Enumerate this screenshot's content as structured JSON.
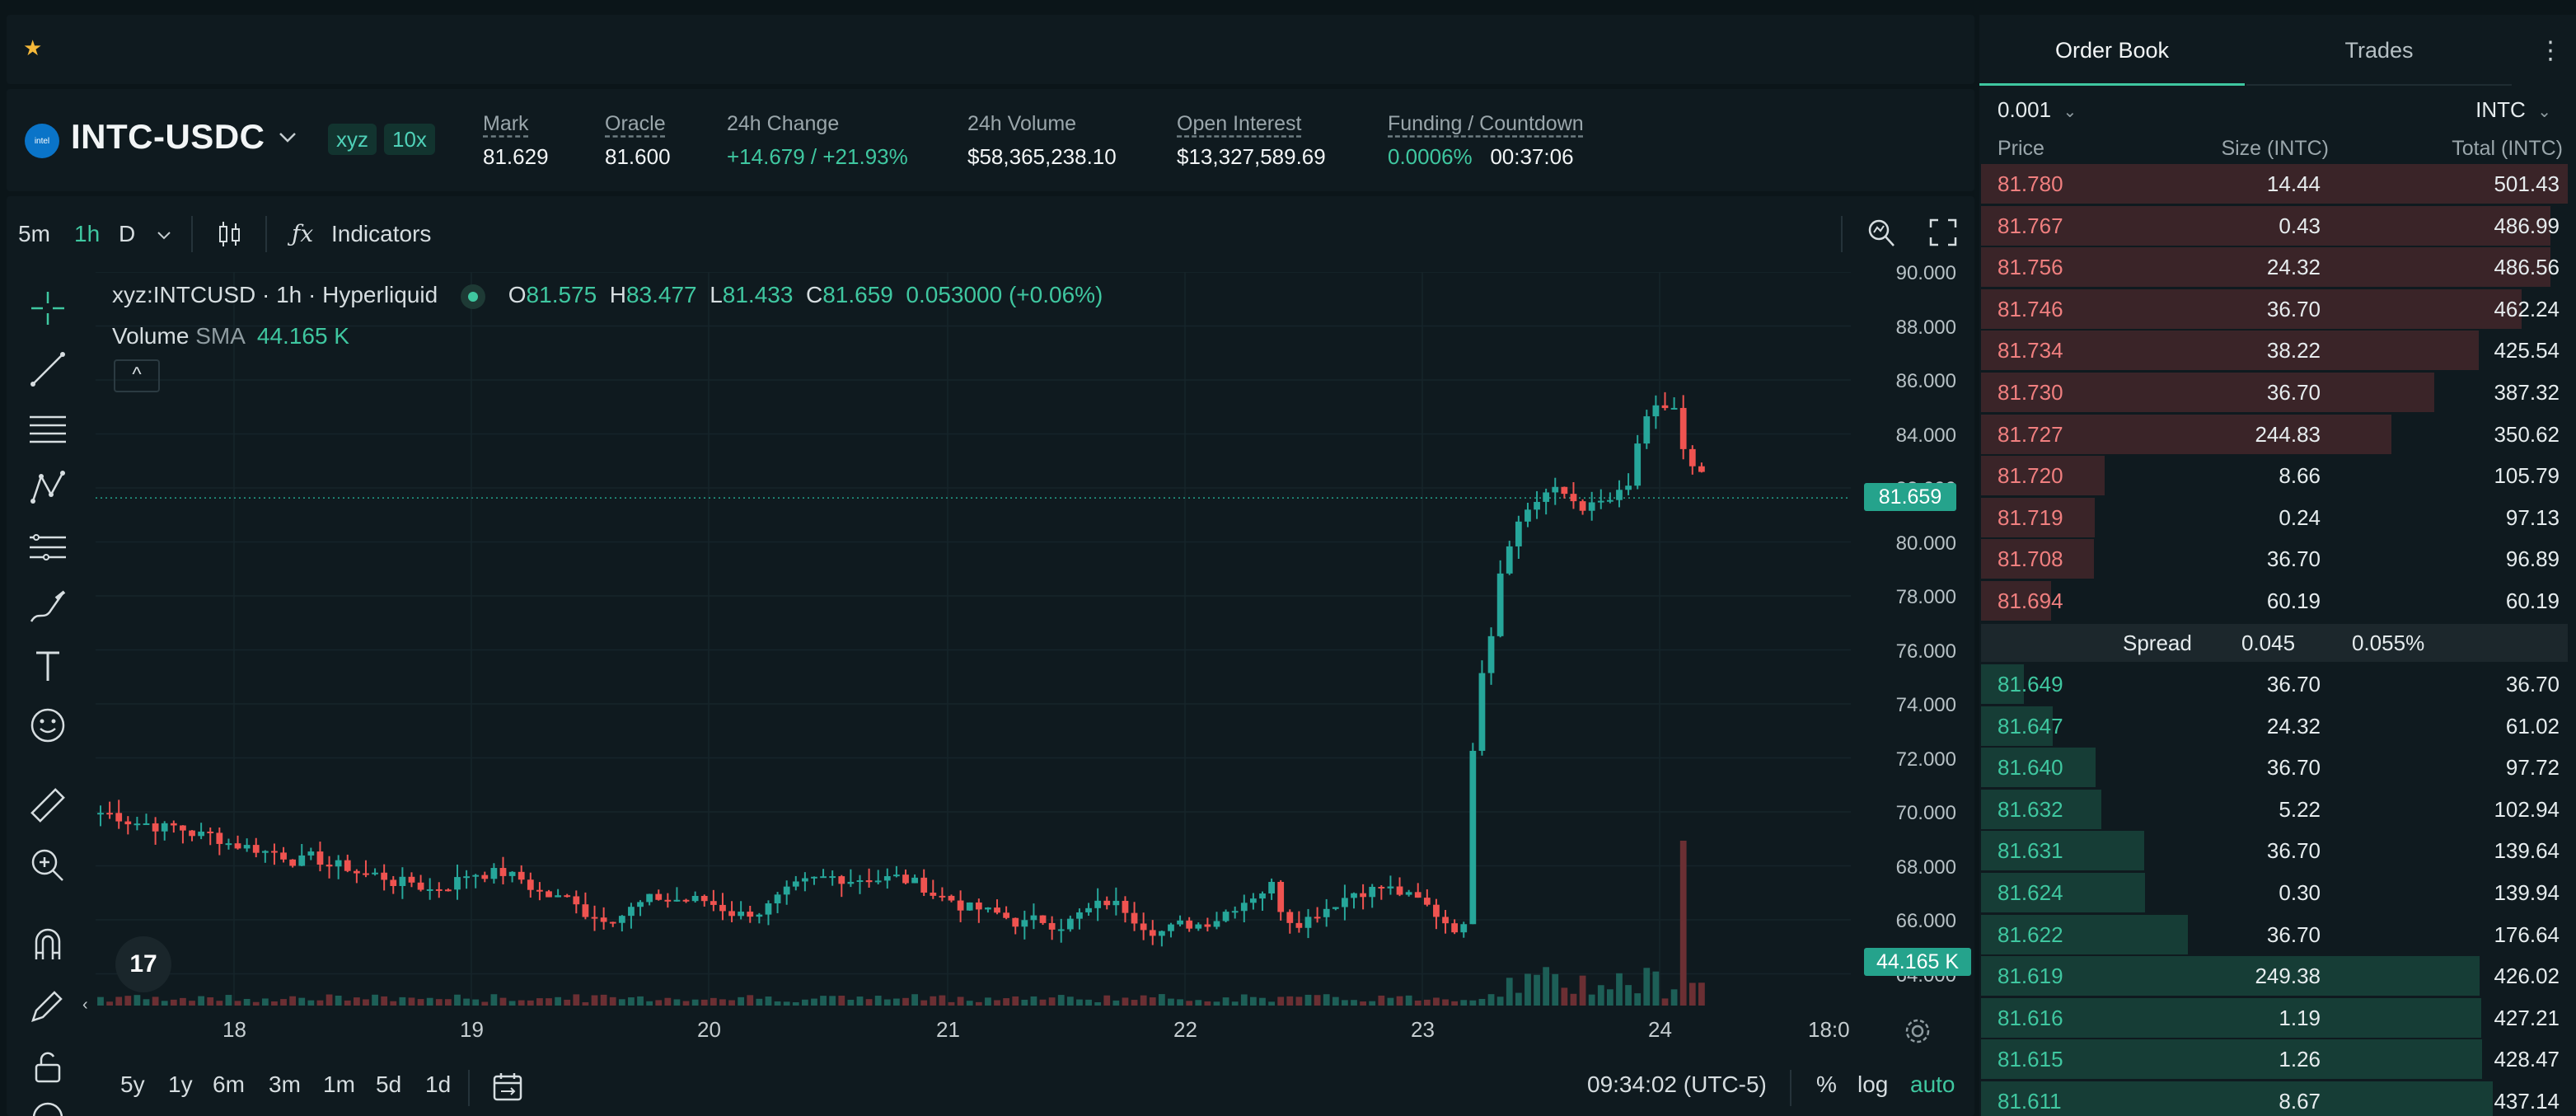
{
  "top_bar": {
    "star_icon": "star-icon"
  },
  "header": {
    "pair": "INTC-USDC",
    "logo_text": "intel",
    "tags": [
      "xyz",
      "10x"
    ],
    "stats": [
      {
        "label": "Mark",
        "value": "81.629"
      },
      {
        "label": "Oracle",
        "value": "81.600"
      },
      {
        "label": "24h Change",
        "value": "+14.679 / +21.93%"
      },
      {
        "label": "24h Volume",
        "value": "$58,365,238.10"
      },
      {
        "label": "Open Interest",
        "value": "$13,327,589.69"
      },
      {
        "label": "Funding / Countdown",
        "value": "0.0006%",
        "value2": "00:37:06"
      }
    ]
  },
  "chart_toolbar": {
    "intervals": [
      "5m",
      "1h",
      "D"
    ],
    "active_interval": "1h",
    "indicators_label": "Indicators"
  },
  "chart_legend": {
    "symbol": "xyz:INTCUSD · 1h · Hyperliquid",
    "o_label": "O",
    "o": "81.575",
    "h_label": "H",
    "h": "83.477",
    "l_label": "L",
    "l": "81.433",
    "c_label": "C",
    "c": "81.659",
    "change": "0.053000 (+0.06%)",
    "volume_label": "Volume",
    "sma_label": "SMA",
    "volume_value": "44.165 K",
    "collapse": "^"
  },
  "price_axis": {
    "labels": [
      "90.000",
      "88.000",
      "86.000",
      "84.000",
      "82.000",
      "80.000",
      "78.000",
      "76.000",
      "74.000",
      "72.000",
      "70.000",
      "68.000",
      "66.000",
      "64.000"
    ],
    "last_price": "81.659",
    "volume_tag": "44.165 K"
  },
  "time_axis": {
    "labels": [
      "18",
      "19",
      "20",
      "21",
      "22",
      "23",
      "24",
      "18:0"
    ]
  },
  "bottom_bar": {
    "ranges": [
      "5y",
      "1y",
      "6m",
      "3m",
      "1m",
      "5d",
      "1d"
    ],
    "clock": "09:34:02 (UTC-5)",
    "percent": "%",
    "log": "log",
    "auto": "auto"
  },
  "order_book": {
    "tabs": [
      "Order Book",
      "Trades"
    ],
    "tick_size": "0.001",
    "unit": "INTC",
    "headers": {
      "price": "Price",
      "size": "Size (INTC)",
      "total": "Total (INTC)"
    },
    "asks": [
      {
        "price": "81.780",
        "size": "14.44",
        "total": "501.43",
        "depth": 1.0
      },
      {
        "price": "81.767",
        "size": "0.43",
        "total": "486.99",
        "depth": 0.971
      },
      {
        "price": "81.756",
        "size": "24.32",
        "total": "486.56",
        "depth": 0.97
      },
      {
        "price": "81.746",
        "size": "36.70",
        "total": "462.24",
        "depth": 0.922
      },
      {
        "price": "81.734",
        "size": "38.22",
        "total": "425.54",
        "depth": 0.849
      },
      {
        "price": "81.730",
        "size": "36.70",
        "total": "387.32",
        "depth": 0.772
      },
      {
        "price": "81.727",
        "size": "244.83",
        "total": "350.62",
        "depth": 0.699
      },
      {
        "price": "81.720",
        "size": "8.66",
        "total": "105.79",
        "depth": 0.211
      },
      {
        "price": "81.719",
        "size": "0.24",
        "total": "97.13",
        "depth": 0.194
      },
      {
        "price": "81.708",
        "size": "36.70",
        "total": "96.89",
        "depth": 0.193
      },
      {
        "price": "81.694",
        "size": "60.19",
        "total": "60.19",
        "depth": 0.12
      }
    ],
    "spread": {
      "label": "Spread",
      "value": "0.045",
      "percent": "0.055%"
    },
    "bids": [
      {
        "price": "81.649",
        "size": "36.70",
        "total": "36.70",
        "depth": 0.073
      },
      {
        "price": "81.647",
        "size": "24.32",
        "total": "61.02",
        "depth": 0.122
      },
      {
        "price": "81.640",
        "size": "36.70",
        "total": "97.72",
        "depth": 0.195
      },
      {
        "price": "81.632",
        "size": "5.22",
        "total": "102.94",
        "depth": 0.205
      },
      {
        "price": "81.631",
        "size": "36.70",
        "total": "139.64",
        "depth": 0.278
      },
      {
        "price": "81.624",
        "size": "0.30",
        "total": "139.94",
        "depth": 0.279
      },
      {
        "price": "81.622",
        "size": "36.70",
        "total": "176.64",
        "depth": 0.352
      },
      {
        "price": "81.619",
        "size": "249.38",
        "total": "426.02",
        "depth": 0.85
      },
      {
        "price": "81.616",
        "size": "1.19",
        "total": "427.21",
        "depth": 0.852
      },
      {
        "price": "81.615",
        "size": "1.26",
        "total": "428.47",
        "depth": 0.854
      },
      {
        "price": "81.611",
        "size": "8.67",
        "total": "437.14",
        "depth": 0.872
      }
    ]
  },
  "colors": {
    "up": "#3fc7a0",
    "down": "#ed7a7a",
    "accent": "#25a38c"
  }
}
